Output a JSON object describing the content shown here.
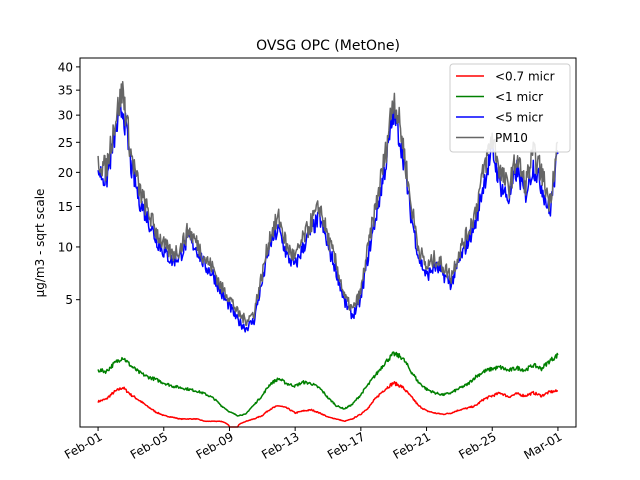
{
  "chart_data": {
    "type": "line",
    "title": "OVSG OPC (MetOne)",
    "ylabel": "μg/m3 - sqrt scale",
    "xlabel": "",
    "y_scale": "sqrt",
    "ylim": [
      0,
      42
    ],
    "y_ticks": [
      5,
      10,
      15,
      20,
      25,
      30,
      35,
      40
    ],
    "x_ticks": [
      "Feb-01",
      "Feb-05",
      "Feb-09",
      "Feb-13",
      "Feb-17",
      "Feb-21",
      "Feb-25",
      "Mar-01"
    ],
    "x_tick_days": [
      0,
      4,
      8,
      12,
      16,
      20,
      24,
      28
    ],
    "xlim_days": [
      -1.1,
      29.1
    ],
    "x_day_range": [
      0,
      28.0
    ],
    "grid": false,
    "legend_position": "top-right",
    "series": [
      {
        "name": "<0.7 micr",
        "color": "#ff0000",
        "x": [
          0.0,
          0.5,
          1.0,
          1.5,
          2.0,
          2.5,
          3.0,
          3.5,
          4.0,
          4.5,
          5.0,
          5.5,
          6.0,
          6.5,
          7.0,
          7.5,
          8.0,
          8.5,
          9.0,
          9.5,
          10.0,
          10.5,
          11.0,
          11.5,
          12.0,
          12.5,
          13.0,
          13.5,
          14.0,
          14.5,
          15.0,
          15.5,
          16.0,
          16.5,
          17.0,
          17.5,
          18.0,
          18.5,
          19.0,
          19.5,
          20.0,
          20.5,
          21.0,
          21.5,
          22.0,
          22.5,
          23.0,
          23.5,
          24.0,
          24.5,
          25.0,
          25.5,
          26.0,
          26.5,
          27.0,
          27.5,
          28.0
        ],
        "values": [
          0.2,
          0.24,
          0.38,
          0.48,
          0.32,
          0.22,
          0.13,
          0.07,
          0.04,
          0.03,
          0.02,
          0.02,
          0.02,
          0.01,
          0.01,
          0.01,
          0.0,
          0.0,
          0.01,
          0.02,
          0.04,
          0.1,
          0.14,
          0.11,
          0.06,
          0.08,
          0.09,
          0.06,
          0.03,
          0.02,
          0.01,
          0.02,
          0.05,
          0.12,
          0.28,
          0.45,
          0.6,
          0.5,
          0.3,
          0.14,
          0.08,
          0.06,
          0.05,
          0.06,
          0.09,
          0.11,
          0.14,
          0.24,
          0.3,
          0.36,
          0.28,
          0.34,
          0.3,
          0.36,
          0.3,
          0.38,
          0.4
        ]
      },
      {
        "name": "<1 micr",
        "color": "#008000",
        "x": [
          0.0,
          0.5,
          1.0,
          1.5,
          2.0,
          2.5,
          3.0,
          3.5,
          4.0,
          4.5,
          5.0,
          5.5,
          6.0,
          6.5,
          7.0,
          7.5,
          8.0,
          8.5,
          9.0,
          9.5,
          10.0,
          10.5,
          11.0,
          11.5,
          12.0,
          12.5,
          13.0,
          13.5,
          14.0,
          14.5,
          15.0,
          15.5,
          16.0,
          16.5,
          17.0,
          17.5,
          18.0,
          18.5,
          19.0,
          19.5,
          20.0,
          20.5,
          21.0,
          21.5,
          22.0,
          22.5,
          23.0,
          23.5,
          24.0,
          24.5,
          25.0,
          25.5,
          26.0,
          26.5,
          27.0,
          27.5,
          28.0
        ],
        "values": [
          1.0,
          0.95,
          1.25,
          1.5,
          1.15,
          0.92,
          0.78,
          0.7,
          0.6,
          0.52,
          0.48,
          0.44,
          0.4,
          0.34,
          0.26,
          0.14,
          0.07,
          0.04,
          0.05,
          0.15,
          0.3,
          0.58,
          0.72,
          0.58,
          0.52,
          0.62,
          0.58,
          0.46,
          0.26,
          0.14,
          0.1,
          0.16,
          0.32,
          0.58,
          0.9,
          1.3,
          1.65,
          1.5,
          1.0,
          0.62,
          0.44,
          0.36,
          0.32,
          0.36,
          0.46,
          0.56,
          0.78,
          0.95,
          1.05,
          1.1,
          0.98,
          1.08,
          1.0,
          1.18,
          1.05,
          1.35,
          1.6
        ]
      },
      {
        "name": "<5 micr",
        "color": "#0000ff",
        "x": [
          0.0,
          0.5,
          1.0,
          1.5,
          2.0,
          2.5,
          3.0,
          3.5,
          4.0,
          4.5,
          5.0,
          5.5,
          6.0,
          6.5,
          7.0,
          7.5,
          8.0,
          8.5,
          9.0,
          9.5,
          10.0,
          10.5,
          11.0,
          11.5,
          12.0,
          12.5,
          13.0,
          13.5,
          14.0,
          14.5,
          15.0,
          15.5,
          16.0,
          16.5,
          17.0,
          17.5,
          18.0,
          18.5,
          19.0,
          19.5,
          20.0,
          20.5,
          21.0,
          21.5,
          22.0,
          22.5,
          23.0,
          23.5,
          24.0,
          24.5,
          25.0,
          25.5,
          26.0,
          26.5,
          27.0,
          27.5,
          28.0
        ],
        "values": [
          20.5,
          18.5,
          26.0,
          31.5,
          21.0,
          16.0,
          13.5,
          11.0,
          9.5,
          8.5,
          9.0,
          11.0,
          9.8,
          8.0,
          7.2,
          5.5,
          4.5,
          3.5,
          3.0,
          3.5,
          6.5,
          10.5,
          12.0,
          9.0,
          8.0,
          10.0,
          12.0,
          13.5,
          10.0,
          7.5,
          4.8,
          3.8,
          5.0,
          9.5,
          14.5,
          21.0,
          30.5,
          24.0,
          14.5,
          9.0,
          7.0,
          8.0,
          7.2,
          6.3,
          8.5,
          10.5,
          13.0,
          18.5,
          23.5,
          18.0,
          16.0,
          20.5,
          16.5,
          21.0,
          18.0,
          14.0,
          23.0
        ]
      },
      {
        "name": "PM10",
        "color": "#666666",
        "x": [
          0.0,
          0.5,
          1.0,
          1.5,
          2.0,
          2.5,
          3.0,
          3.5,
          4.0,
          4.5,
          5.0,
          5.5,
          6.0,
          6.5,
          7.0,
          7.5,
          8.0,
          8.5,
          9.0,
          9.5,
          10.0,
          10.5,
          11.0,
          11.5,
          12.0,
          12.5,
          13.0,
          13.5,
          14.0,
          14.5,
          15.0,
          15.5,
          16.0,
          16.5,
          17.0,
          17.5,
          18.0,
          18.5,
          19.0,
          19.5,
          20.0,
          20.5,
          21.0,
          21.5,
          22.0,
          22.5,
          23.0,
          23.5,
          24.0,
          24.5,
          25.0,
          25.5,
          26.0,
          26.5,
          27.0,
          27.5,
          28.0
        ],
        "values": [
          22.0,
          20.5,
          28.5,
          35.0,
          23.0,
          17.5,
          14.5,
          12.0,
          10.2,
          9.2,
          9.8,
          12.0,
          10.5,
          8.8,
          7.8,
          6.0,
          5.2,
          4.0,
          3.5,
          4.0,
          7.2,
          11.5,
          13.5,
          10.0,
          8.8,
          11.0,
          13.0,
          15.0,
          11.0,
          8.2,
          5.2,
          4.2,
          5.6,
          10.5,
          16.0,
          23.0,
          34.0,
          26.0,
          16.0,
          10.0,
          7.8,
          8.8,
          8.0,
          7.0,
          9.5,
          11.5,
          14.5,
          20.5,
          26.0,
          20.0,
          17.5,
          22.5,
          18.0,
          23.0,
          20.0,
          15.5,
          25.0
        ]
      }
    ]
  }
}
